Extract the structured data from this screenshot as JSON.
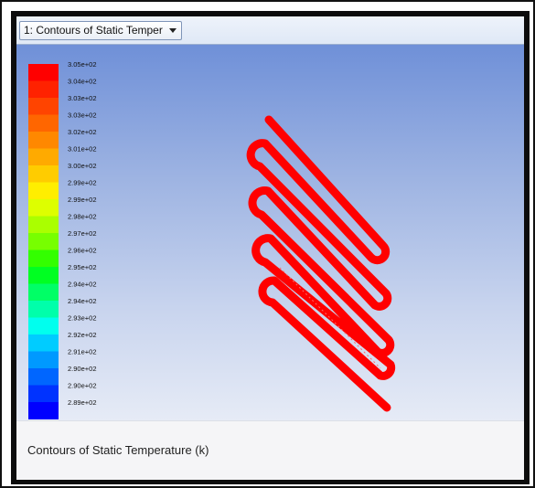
{
  "toolbar": {
    "view_selector_label": "1: Contours of Static Temper"
  },
  "colorbar": {
    "labels": [
      "3.05e+02",
      "3.04e+02",
      "3.03e+02",
      "3.03e+02",
      "3.02e+02",
      "3.01e+02",
      "3.00e+02",
      "2.99e+02",
      "2.99e+02",
      "2.98e+02",
      "2.97e+02",
      "2.96e+02",
      "2.95e+02",
      "2.94e+02",
      "2.94e+02",
      "2.93e+02",
      "2.92e+02",
      "2.91e+02",
      "2.90e+02",
      "2.90e+02",
      "2.89e+02"
    ],
    "colors": [
      "#ff0000",
      "#ff2200",
      "#ff4400",
      "#ff6600",
      "#ff8800",
      "#ffaa00",
      "#ffcc00",
      "#ffee00",
      "#ddff00",
      "#aaff00",
      "#77ff00",
      "#33ff00",
      "#00ff22",
      "#00ff66",
      "#00ffaa",
      "#00ffee",
      "#00ccff",
      "#0099ff",
      "#0066ff",
      "#0033ff",
      "#0000ff"
    ]
  },
  "geometry_color": "#ff0000",
  "caption": {
    "text": "Contours of Static Temperature (k)"
  }
}
